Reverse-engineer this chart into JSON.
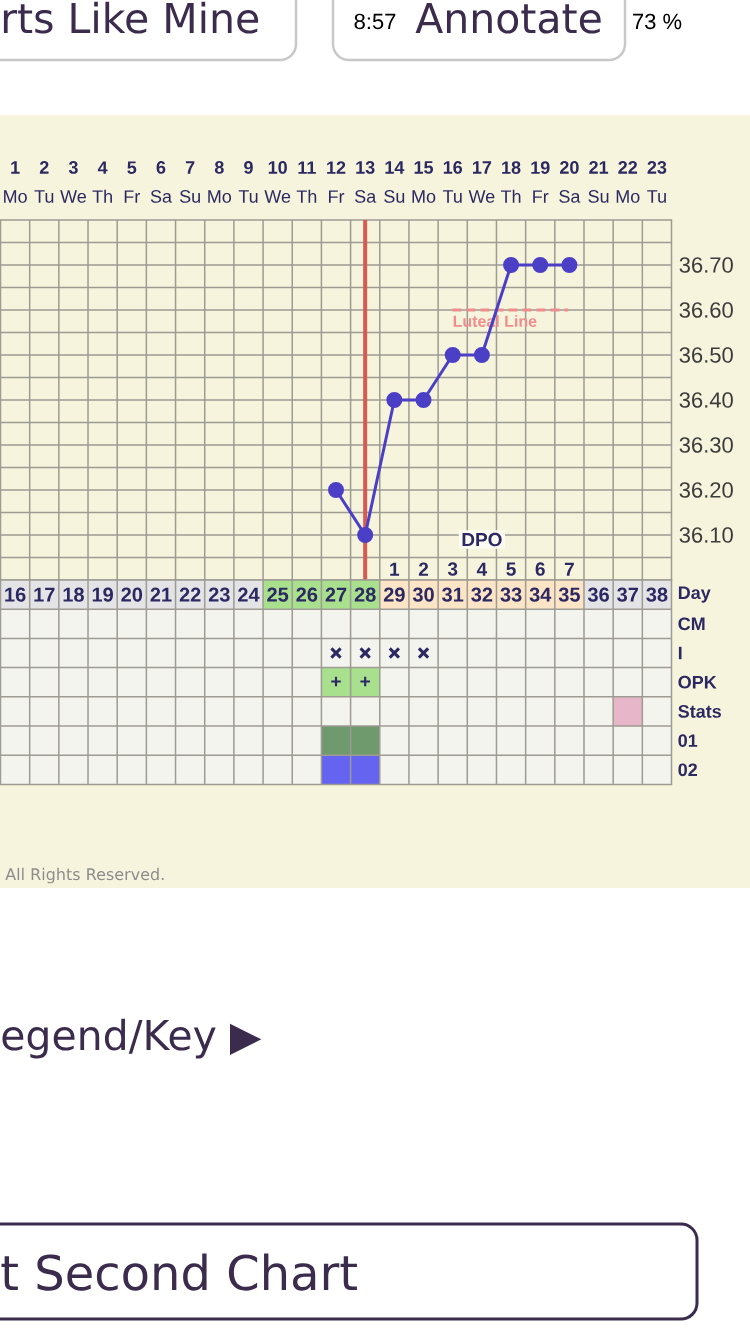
{
  "chart_data": [
    {
      "type": "line",
      "x": [
        12,
        13,
        14,
        15,
        16,
        17,
        18,
        19,
        20
      ],
      "values": [
        36.2,
        36.1,
        36.4,
        36.4,
        36.5,
        36.5,
        36.7,
        36.7,
        36.7
      ],
      "color": "#4b3fc6",
      "marker": "circle",
      "line_style": "solid",
      "xlim": [
        0.5,
        23.5
      ],
      "xticks": [
        {
          "value": 1,
          "label": "**1** Mo"
        },
        {
          "value": 2,
          "label": "**2** Tu"
        },
        {
          "value": 3,
          "label": "**3** We"
        },
        {
          "value": 4,
          "label": "**4** Th"
        },
        {
          "value": 5,
          "label": "**5** Fr"
        },
        {
          "value": 6,
          "label": "**6** Sa"
        },
        {
          "value": 7,
          "label": "**7** Su"
        },
        {
          "value": 8,
          "label": "**8** Mo"
        },
        {
          "value": 9,
          "label": "**9** Tu"
        },
        {
          "value": 10,
          "label": "**10** We"
        },
        {
          "value": 11,
          "label": "**11** Th"
        },
        {
          "value": 12,
          "label": "**12** Fr"
        },
        {
          "value": 13,
          "label": "**13** Sa"
        },
        {
          "value": 14,
          "label": "**14** Su"
        },
        {
          "value": 15,
          "label": "**15** Mo"
        },
        {
          "value": 16,
          "label": "**16** Tu"
        },
        {
          "value": 17,
          "label": "**17** We"
        },
        {
          "value": 18,
          "label": "**18** Th"
        },
        {
          "value": 19,
          "label": "**19** Fr"
        },
        {
          "value": 20,
          "label": "**20** Sa"
        },
        {
          "value": 21,
          "label": "**21** Su"
        },
        {
          "value": 22,
          "label": "**22** Mo"
        },
        {
          "value": 23,
          "label": "**23** Tu"
        }
      ],
      "x2lim": [
        -12.5,
        10.5
      ],
      "x2ticks": [
        1,
        2,
        3,
        4,
        5,
        6,
        7
      ],
      "x2label": "DPO",
      "ylim": [
        36.0,
        36.8
      ],
      "yticks": [
        {
          "value": 36.05,
          "label": null
        },
        {
          "value": 36.1,
          "label": "36.10"
        },
        {
          "value": 36.15,
          "label": null
        },
        {
          "value": 36.2,
          "label": "36.20"
        },
        {
          "value": 36.25,
          "label": null
        },
        {
          "value": 36.3,
          "label": "36.30"
        },
        {
          "value": 36.35,
          "label": null
        },
        {
          "value": 36.4,
          "label": "36.40"
        },
        {
          "value": 36.45,
          "label": null
        },
        {
          "value": 36.5,
          "label": "36.50"
        },
        {
          "value": 36.55,
          "label": null
        },
        {
          "value": 36.6,
          "label": "36.60"
        },
        {
          "value": 36.65,
          "label": null
        },
        {
          "value": 36.7,
          "label": "36.70"
        },
        {
          "value": 36.75,
          "label": null
        }
      ],
      "grid": true,
      "ref_lines": [
        {
          "axis": "x",
          "value": 13,
          "color": "#d65a50"
        },
        {
          "axis": "y",
          "value": 36.6,
          "label": "Luteal Line",
          "color": "#f08c8c",
          "line_style": "dashed"
        }
      ],
      "annotations": [
        "All Rights Reserved.",
        "8:57",
        "73 %",
        "rts Like Mine",
        "Annotate",
        "egend/Key ▶",
        "t Second Chart"
      ]
    },
    {
      "type": "bar",
      "orientation": "horizontal",
      "categories": [
        "Day",
        "CM",
        "I",
        "OPK",
        "Stats",
        "01",
        "02"
      ],
      "series": [
        {
          "values": [
            9,
            null,
            null,
            2,
            1,
            2,
            2
          ],
          "base": [
            15.5,
            null,
            null,
            26.5,
            36.5,
            26.5,
            26.5
          ],
          "colors": [
            "#e4e4e6",
            null,
            null,
            "#a8e08e",
            "#e8b6c9",
            "#6e9a6e",
            "#6464f0"
          ]
        },
        {
          "values": [
            4,
            null,
            null,
            null,
            null,
            null,
            null
          ],
          "base": [
            24.5,
            null,
            null,
            null,
            null,
            null,
            null
          ],
          "colors": [
            "#a8e08e",
            null,
            null,
            null,
            null,
            null,
            null
          ]
        },
        {
          "values": [
            7,
            null,
            null,
            null,
            null,
            null,
            null
          ],
          "base": [
            28.5,
            null,
            null,
            null,
            null,
            null,
            null
          ],
          "colors": [
            "#fce4c6",
            null,
            null,
            null,
            null,
            null,
            null
          ]
        },
        {
          "values": [
            3,
            null,
            null,
            null,
            null,
            null,
            null
          ],
          "base": [
            35.5,
            null,
            null,
            null,
            null,
            null,
            null
          ],
          "colors": [
            "#e4e4e6",
            null,
            null,
            null,
            null,
            null,
            null
          ]
        },
        {
          "type": "scatter",
          "color": "#2b2862",
          "values": [
            null,
            null,
            27,
            null,
            null,
            null,
            null
          ]
        },
        {
          "type": "scatter",
          "color": "#2b2862",
          "values": [
            null,
            null,
            28,
            null,
            null,
            null,
            null
          ]
        },
        {
          "type": "scatter",
          "color": "#2b2862",
          "values": [
            null,
            null,
            29,
            null,
            null,
            null,
            null
          ]
        },
        {
          "type": "scatter",
          "color": "#2b2862",
          "values": [
            null,
            null,
            30,
            null,
            null,
            null,
            null
          ]
        }
      ],
      "marker": "cross",
      "xlim": [
        15.5,
        38.5
      ],
      "xticks": [
        16,
        17,
        18,
        19,
        20,
        21,
        22,
        23,
        24,
        25,
        26,
        27,
        28,
        29,
        30,
        31,
        32,
        33,
        34,
        35,
        36,
        37,
        38
      ],
      "annotations": [
        {
          "text": "+",
          "x": 27,
          "y": "OPK"
        },
        {
          "text": "+",
          "x": 28,
          "y": "OPK"
        }
      ],
      "grid": true
    }
  ]
}
